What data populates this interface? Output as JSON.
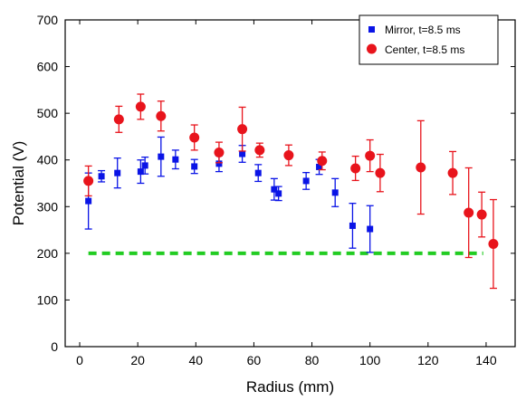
{
  "chart_data": {
    "type": "scatter",
    "title": "",
    "xlabel": "Radius (mm)",
    "ylabel": "Potential (V)",
    "xlim": [
      -5,
      150
    ],
    "ylim": [
      0,
      700
    ],
    "xticks": [
      0,
      20,
      40,
      60,
      80,
      100,
      120,
      140
    ],
    "yticks": [
      0,
      100,
      200,
      300,
      400,
      500,
      600,
      700
    ],
    "grid": false,
    "legend_position": "top-right",
    "series": [
      {
        "name": "Mirror, t=8.5 ms",
        "marker": "square",
        "color": "#0a14e6",
        "points": [
          {
            "x": 3,
            "y": 312,
            "err": 60
          },
          {
            "x": 7.5,
            "y": 365,
            "err": 12
          },
          {
            "x": 13,
            "y": 372,
            "err": 32
          },
          {
            "x": 21,
            "y": 375,
            "err": 25
          },
          {
            "x": 22.5,
            "y": 388,
            "err": 18
          },
          {
            "x": 28,
            "y": 407,
            "err": 42
          },
          {
            "x": 33,
            "y": 401,
            "err": 20
          },
          {
            "x": 39.5,
            "y": 386,
            "err": 15
          },
          {
            "x": 48,
            "y": 392,
            "err": 17
          },
          {
            "x": 56,
            "y": 413,
            "err": 18
          },
          {
            "x": 61.5,
            "y": 372,
            "err": 18
          },
          {
            "x": 67,
            "y": 337,
            "err": 23
          },
          {
            "x": 68.5,
            "y": 328,
            "err": 15
          },
          {
            "x": 78,
            "y": 355,
            "err": 18
          },
          {
            "x": 82.5,
            "y": 385,
            "err": 16
          },
          {
            "x": 88,
            "y": 330,
            "err": 30
          },
          {
            "x": 94,
            "y": 259,
            "err": 48
          },
          {
            "x": 100,
            "y": 252,
            "err": 50
          }
        ]
      },
      {
        "name": "Center, t=8.5 ms",
        "marker": "circle",
        "color": "#e8141c",
        "points": [
          {
            "x": 3,
            "y": 355,
            "err": 32
          },
          {
            "x": 13.5,
            "y": 487,
            "err": 28
          },
          {
            "x": 21,
            "y": 514,
            "err": 27
          },
          {
            "x": 28,
            "y": 494,
            "err": 32
          },
          {
            "x": 39.5,
            "y": 448,
            "err": 27
          },
          {
            "x": 48,
            "y": 416,
            "err": 22
          },
          {
            "x": 56,
            "y": 466,
            "err": 47
          },
          {
            "x": 62,
            "y": 421,
            "err": 15
          },
          {
            "x": 72,
            "y": 410,
            "err": 22
          },
          {
            "x": 83.5,
            "y": 398,
            "err": 19
          },
          {
            "x": 95,
            "y": 382,
            "err": 26
          },
          {
            "x": 100,
            "y": 409,
            "err": 34
          },
          {
            "x": 103.5,
            "y": 372,
            "err": 40
          },
          {
            "x": 117.5,
            "y": 384,
            "err": 100
          },
          {
            "x": 128.5,
            "y": 372,
            "err": 46
          },
          {
            "x": 134,
            "y": 287,
            "err": 96
          },
          {
            "x": 138.5,
            "y": 283,
            "err": 48
          },
          {
            "x": 142.5,
            "y": 220,
            "err": 95
          }
        ]
      }
    ],
    "reference_line": {
      "y": 200,
      "x_start": 3,
      "x_end": 139,
      "style": "dashed",
      "color": "#22cc22"
    }
  }
}
